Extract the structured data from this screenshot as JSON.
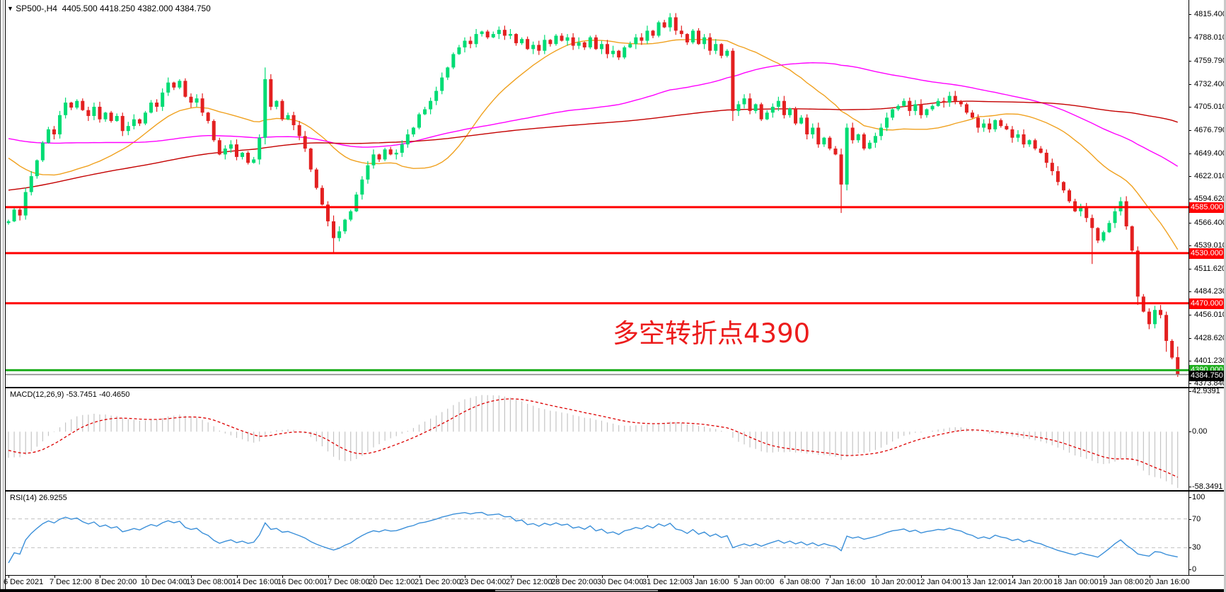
{
  "window": {
    "title_symbol": "SP500-,H4",
    "title_ohlc": "4405.500 4418.250 4382.000 4384.750"
  },
  "annotation": {
    "text": "多空转折点4390",
    "color": "#ec1c1c"
  },
  "macd_panel": {
    "label": "MACD(12,26,9)",
    "main_value": "-53.7451",
    "signal_value": "-40.4650"
  },
  "rsi_panel": {
    "label": "RSI(14)",
    "value": "26.9255"
  },
  "chart_data": {
    "type": "candlestick",
    "symbol": "SP500-",
    "timeframe": "H4",
    "current_bar": {
      "open": 4405.5,
      "high": 4418.25,
      "low": 4382.0,
      "close": 4384.75
    },
    "price_ylim": [
      4370,
      4831
    ],
    "y_axis_ticks": [
      "4815.400",
      "4788.010",
      "4759.790",
      "4732.400",
      "4705.010",
      "4676.790",
      "4649.400",
      "4622.010",
      "4594.620",
      "4566.400",
      "4539.010",
      "4511.620",
      "4484.230",
      "4456.010",
      "4428.620",
      "4401.230",
      "4373.840"
    ],
    "time_labels": [
      "6 Dec 2021",
      "7 Dec 12:00",
      "8 Dec 20:00",
      "10 Dec 04:00",
      "13 Dec 08:00",
      "14 Dec 16:00",
      "16 Dec 00:00",
      "17 Dec 08:00",
      "20 Dec 12:00",
      "21 Dec 20:00",
      "23 Dec 04:00",
      "27 Dec 12:00",
      "28 Dec 20:00",
      "30 Dec 04:00",
      "31 Dec 12:00",
      "3 Jan 16:00",
      "5 Jan 00:00",
      "6 Jan 08:00",
      "7 Jan 16:00",
      "10 Jan 20:00",
      "12 Jan 04:00",
      "13 Jan 12:00",
      "14 Jan 20:00",
      "18 Jan 00:00",
      "19 Jan 08:00",
      "20 Jan 16:00"
    ],
    "horizontal_lines": [
      {
        "value": 4585.0,
        "label": "4585.000",
        "color": "#ff0000"
      },
      {
        "value": 4530.0,
        "label": "4530.000",
        "color": "#ff0000"
      },
      {
        "value": 4470.0,
        "label": "4470.000",
        "color": "#ff0000"
      },
      {
        "value": 4390.0,
        "label": "4390.000",
        "color": "#1fae1f"
      }
    ],
    "current_price": {
      "value": 4384.75,
      "label": "4384.750",
      "line_color": "#888888",
      "badge_color": "#000000"
    },
    "moving_averages": [
      {
        "name": "fast-ma",
        "period": 24,
        "color": "#f0a11f"
      },
      {
        "name": "medium-ma",
        "period": 72,
        "color": "#ff00ff"
      },
      {
        "name": "slow-ma",
        "period": 160,
        "color": "#c40000"
      }
    ],
    "macd": {
      "params": [
        12,
        26,
        9
      ],
      "ylim": [
        -62,
        46
      ],
      "ticks": [
        {
          "label": "42.9391",
          "value": 42.9391
        },
        {
          "label": "0.00",
          "value": 0
        },
        {
          "label": "-58.3491",
          "value": -58.3491
        }
      ],
      "hist_color": "#c4c4c4",
      "signal_color": "#dd0000"
    },
    "rsi": {
      "period": 14,
      "ylim": [
        0,
        100
      ],
      "ticks": [
        {
          "label": "100",
          "value": 100
        },
        {
          "label": "70",
          "value": 70,
          "dashed": true
        },
        {
          "label": "30",
          "value": 30,
          "dashed": true
        },
        {
          "label": "0",
          "value": 0
        }
      ],
      "color": "#3a8fd9",
      "level_color": "#c0c0c0"
    },
    "bull_color": "#00dc74",
    "bear_color": "#e32020",
    "warmup_anchors": [
      [
        0,
        4440
      ],
      [
        40,
        4545
      ],
      [
        70,
        4618
      ],
      [
        100,
        4700
      ],
      [
        120,
        4658
      ],
      [
        140,
        4698
      ],
      [
        150,
        4645
      ],
      [
        159,
        4566
      ]
    ],
    "closes": [
      4568,
      4582,
      4575,
      4603,
      4622,
      4641,
      4662,
      4678,
      4672,
      4695,
      4710,
      4704,
      4712,
      4701,
      4694,
      4705,
      4690,
      4698,
      4688,
      4694,
      4676,
      4682,
      4690,
      4685,
      4698,
      4710,
      4705,
      4722,
      4734,
      4728,
      4736,
      4717,
      4710,
      4715,
      4698,
      4688,
      4665,
      4648,
      4655,
      4660,
      4645,
      4650,
      4638,
      4642,
      4668,
      4738,
      4705,
      4712,
      4690,
      4695,
      4683,
      4670,
      4655,
      4630,
      4608,
      4588,
      4568,
      4548,
      4556,
      4570,
      4580,
      4600,
      4618,
      4635,
      4648,
      4642,
      4654,
      4648,
      4650,
      4660,
      4672,
      4680,
      4696,
      4702,
      4712,
      4724,
      4740,
      4752,
      4768,
      4776,
      4784,
      4780,
      4792,
      4795,
      4788,
      4792,
      4797,
      4790,
      4792,
      4781,
      4786,
      4774,
      4779,
      4772,
      4785,
      4780,
      4790,
      4784,
      4788,
      4778,
      4782,
      4776,
      4788,
      4774,
      4780,
      4768,
      4772,
      4764,
      4776,
      4780,
      4788,
      4784,
      4796,
      4790,
      4806,
      4800,
      4812,
      4796,
      4792,
      4782,
      4796,
      4780,
      4788,
      4772,
      4780,
      4766,
      4772,
      4700,
      4708,
      4715,
      4700,
      4708,
      4690,
      4698,
      4705,
      4712,
      4695,
      4703,
      4685,
      4692,
      4672,
      4680,
      4660,
      4668,
      4655,
      4648,
      4612,
      4680,
      4665,
      4672,
      4655,
      4662,
      4670,
      4680,
      4692,
      4702,
      4706,
      4712,
      4700,
      4708,
      4695,
      4702,
      4706,
      4712,
      4710,
      4718,
      4712,
      4708,
      4698,
      4692,
      4680,
      4685,
      4678,
      4689,
      4682,
      4678,
      4668,
      4672,
      4660,
      4665,
      4655,
      4650,
      4638,
      4628,
      4615,
      4605,
      4592,
      4580,
      4585,
      4572,
      4560,
      4545,
      4555,
      4566,
      4580,
      4592,
      4562,
      4533,
      4478,
      4460,
      4445,
      4462,
      4456,
      4425,
      4405,
      4384.75
    ],
    "ohlc_overrides": {
      "45": [
        4668,
        4752,
        4660,
        4738
      ],
      "57": [
        4568,
        4575,
        4529,
        4548
      ],
      "116": [
        4800,
        4817,
        4795,
        4812
      ],
      "127": [
        4772,
        4775,
        4688,
        4700
      ],
      "146": [
        4648,
        4655,
        4578,
        4612
      ],
      "147": [
        4612,
        4685,
        4605,
        4680
      ],
      "190": [
        4572,
        4576,
        4517,
        4560
      ],
      "198": [
        4533,
        4538,
        4468,
        4478
      ],
      "203": [
        4456,
        4460,
        4412,
        4425
      ],
      "205": [
        4405.5,
        4418.25,
        4382,
        4384.75
      ]
    }
  }
}
